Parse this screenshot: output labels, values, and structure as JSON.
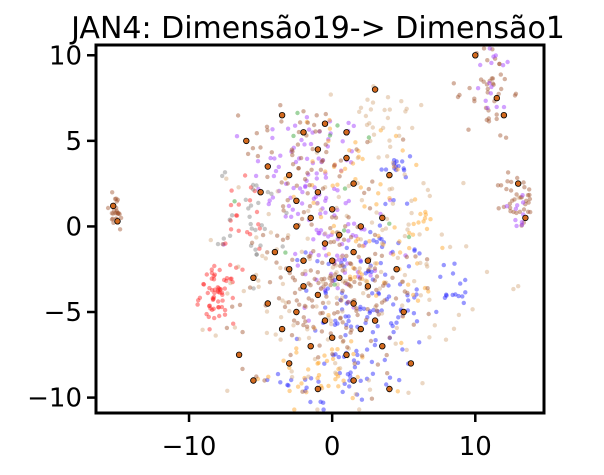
{
  "chart_data": {
    "type": "scatter",
    "title": "JAN4: Dimensão19-> Dimensão1",
    "xlabel": "",
    "ylabel": "",
    "xlim": [
      -16.5,
      14.8
    ],
    "ylim": [
      -10.9,
      10.6
    ],
    "xticks": [
      -10,
      0,
      10
    ],
    "yticks": [
      -10,
      -5,
      0,
      5,
      10
    ],
    "xtick_labels": [
      "−10",
      "0",
      "10"
    ],
    "ytick_labels": [
      "−10",
      "−5",
      "0",
      "5",
      "10"
    ],
    "grid": false,
    "legend": "none",
    "colors": {
      "brown": "#a0522d",
      "orange": "#ff9f1a",
      "blue": "#1a1aff",
      "purple": "#9b30ff",
      "red": "#ff2020",
      "gray": "#808080",
      "green": "#2ca02c",
      "tan": "#d2a679",
      "outlined_fill": "#d2691e"
    },
    "clusters": [
      {
        "color": "purple",
        "cx": -1.5,
        "cy": 3.0,
        "sx": 2.0,
        "sy": 2.0,
        "n": 90
      },
      {
        "color": "purple",
        "cx": 0.5,
        "cy": -2.0,
        "sx": 2.0,
        "sy": 2.0,
        "n": 50
      },
      {
        "color": "blue",
        "cx": 2.5,
        "cy": -4.5,
        "sx": 2.0,
        "sy": 2.5,
        "n": 120
      },
      {
        "color": "blue",
        "cx": 4.5,
        "cy": 3.5,
        "sx": 0.6,
        "sy": 0.6,
        "n": 15
      },
      {
        "color": "blue",
        "cx": 0.5,
        "cy": -9.0,
        "sx": 2.0,
        "sy": 0.8,
        "n": 30
      },
      {
        "color": "orange",
        "cx": 2.0,
        "cy": 3.5,
        "sx": 2.5,
        "sy": 1.5,
        "n": 40
      },
      {
        "color": "orange",
        "cx": 3.0,
        "cy": -2.5,
        "sx": 2.0,
        "sy": 1.5,
        "n": 40
      },
      {
        "color": "orange",
        "cx": -1.0,
        "cy": -8.5,
        "sx": 2.0,
        "sy": 1.0,
        "n": 40
      },
      {
        "color": "red",
        "cx": -8.0,
        "cy": -4.0,
        "sx": 0.6,
        "sy": 0.8,
        "n": 60
      },
      {
        "color": "red",
        "cx": -6.0,
        "cy": 0.0,
        "sx": 1.0,
        "sy": 1.5,
        "n": 20
      },
      {
        "color": "gray",
        "cx": -5.5,
        "cy": 0.5,
        "sx": 1.2,
        "sy": 1.5,
        "n": 30
      },
      {
        "color": "tan",
        "cx": 1.0,
        "cy": -3.0,
        "sx": 4.0,
        "sy": 3.5,
        "n": 150
      },
      {
        "color": "tan",
        "cx": 3.5,
        "cy": 6.0,
        "sx": 1.5,
        "sy": 1.5,
        "n": 30
      },
      {
        "color": "brown",
        "cx": 0.0,
        "cy": -3.5,
        "sx": 3.0,
        "sy": 2.5,
        "n": 180
      },
      {
        "color": "brown",
        "cx": -2.0,
        "cy": 4.5,
        "sx": 2.0,
        "sy": 1.5,
        "n": 50
      },
      {
        "color": "brown",
        "cx": 11.0,
        "cy": 8.0,
        "sx": 0.8,
        "sy": 1.5,
        "n": 40
      },
      {
        "color": "brown",
        "cx": 13.0,
        "cy": 1.5,
        "sx": 0.6,
        "sy": 0.8,
        "n": 35
      },
      {
        "color": "brown",
        "cx": -15.2,
        "cy": 0.8,
        "sx": 0.35,
        "sy": 0.6,
        "n": 25
      },
      {
        "color": "purple",
        "cx": 11.5,
        "cy": 8.5,
        "sx": 0.8,
        "sy": 1.2,
        "n": 15
      },
      {
        "color": "purple",
        "cx": 13.0,
        "cy": 1.0,
        "sx": 0.6,
        "sy": 0.6,
        "n": 10
      },
      {
        "color": "green",
        "cx": 0.5,
        "cy": 2.0,
        "sx": 3.0,
        "sy": 3.0,
        "n": 12
      },
      {
        "color": "blue",
        "cx": 8.5,
        "cy": -3.5,
        "sx": 0.6,
        "sy": 0.8,
        "n": 15
      },
      {
        "color": "orange",
        "cx": 6.5,
        "cy": 0.2,
        "sx": 0.3,
        "sy": 0.4,
        "n": 8
      }
    ],
    "outlined_points": [
      [
        -2.0,
        5.5
      ],
      [
        -1.0,
        4.5
      ],
      [
        -3.0,
        3.0
      ],
      [
        -4.5,
        3.5
      ],
      [
        -0.5,
        6.0
      ],
      [
        1.0,
        5.5
      ],
      [
        -2.5,
        1.5
      ],
      [
        -1.5,
        0.5
      ],
      [
        0.0,
        1.0
      ],
      [
        1.5,
        2.5
      ],
      [
        -4.0,
        -1.5
      ],
      [
        -3.0,
        -2.5
      ],
      [
        -2.0,
        -3.5
      ],
      [
        -1.0,
        -4.0
      ],
      [
        0.5,
        -3.0
      ],
      [
        1.5,
        -4.5
      ],
      [
        2.5,
        -3.5
      ],
      [
        -0.5,
        -5.5
      ],
      [
        -2.5,
        -5.0
      ],
      [
        -3.5,
        -6.0
      ],
      [
        0.0,
        -6.5
      ],
      [
        1.0,
        -7.5
      ],
      [
        -1.5,
        -7.0
      ],
      [
        2.0,
        -6.0
      ],
      [
        3.0,
        -5.5
      ],
      [
        -2.0,
        -2.0
      ],
      [
        -0.5,
        -1.0
      ],
      [
        0.5,
        -0.5
      ],
      [
        1.5,
        -1.5
      ],
      [
        2.5,
        -2.0
      ],
      [
        3.5,
        0.5
      ],
      [
        4.0,
        3.0
      ],
      [
        3.0,
        8.0
      ],
      [
        -3.5,
        6.5
      ],
      [
        -5.0,
        2.0
      ],
      [
        -5.5,
        -3.0
      ],
      [
        -4.5,
        -4.5
      ],
      [
        -3.0,
        -8.0
      ],
      [
        -1.0,
        -9.5
      ],
      [
        1.5,
        -9.0
      ],
      [
        3.5,
        -7.0
      ],
      [
        4.5,
        -2.5
      ],
      [
        -6.0,
        5.0
      ],
      [
        -2.5,
        0.0
      ],
      [
        0.0,
        -2.0
      ],
      [
        2.0,
        0.0
      ],
      [
        -1.0,
        2.0
      ],
      [
        1.0,
        4.0
      ],
      [
        10.0,
        10.0
      ],
      [
        11.5,
        7.5
      ],
      [
        12.0,
        6.5
      ],
      [
        13.0,
        2.5
      ],
      [
        13.5,
        0.5
      ],
      [
        -15.3,
        1.2
      ],
      [
        -15.0,
        0.3
      ],
      [
        -6.5,
        -7.5
      ],
      [
        -5.5,
        -9.0
      ],
      [
        5.0,
        -5.0
      ],
      [
        5.5,
        -8.0
      ],
      [
        4.0,
        -9.5
      ]
    ]
  }
}
